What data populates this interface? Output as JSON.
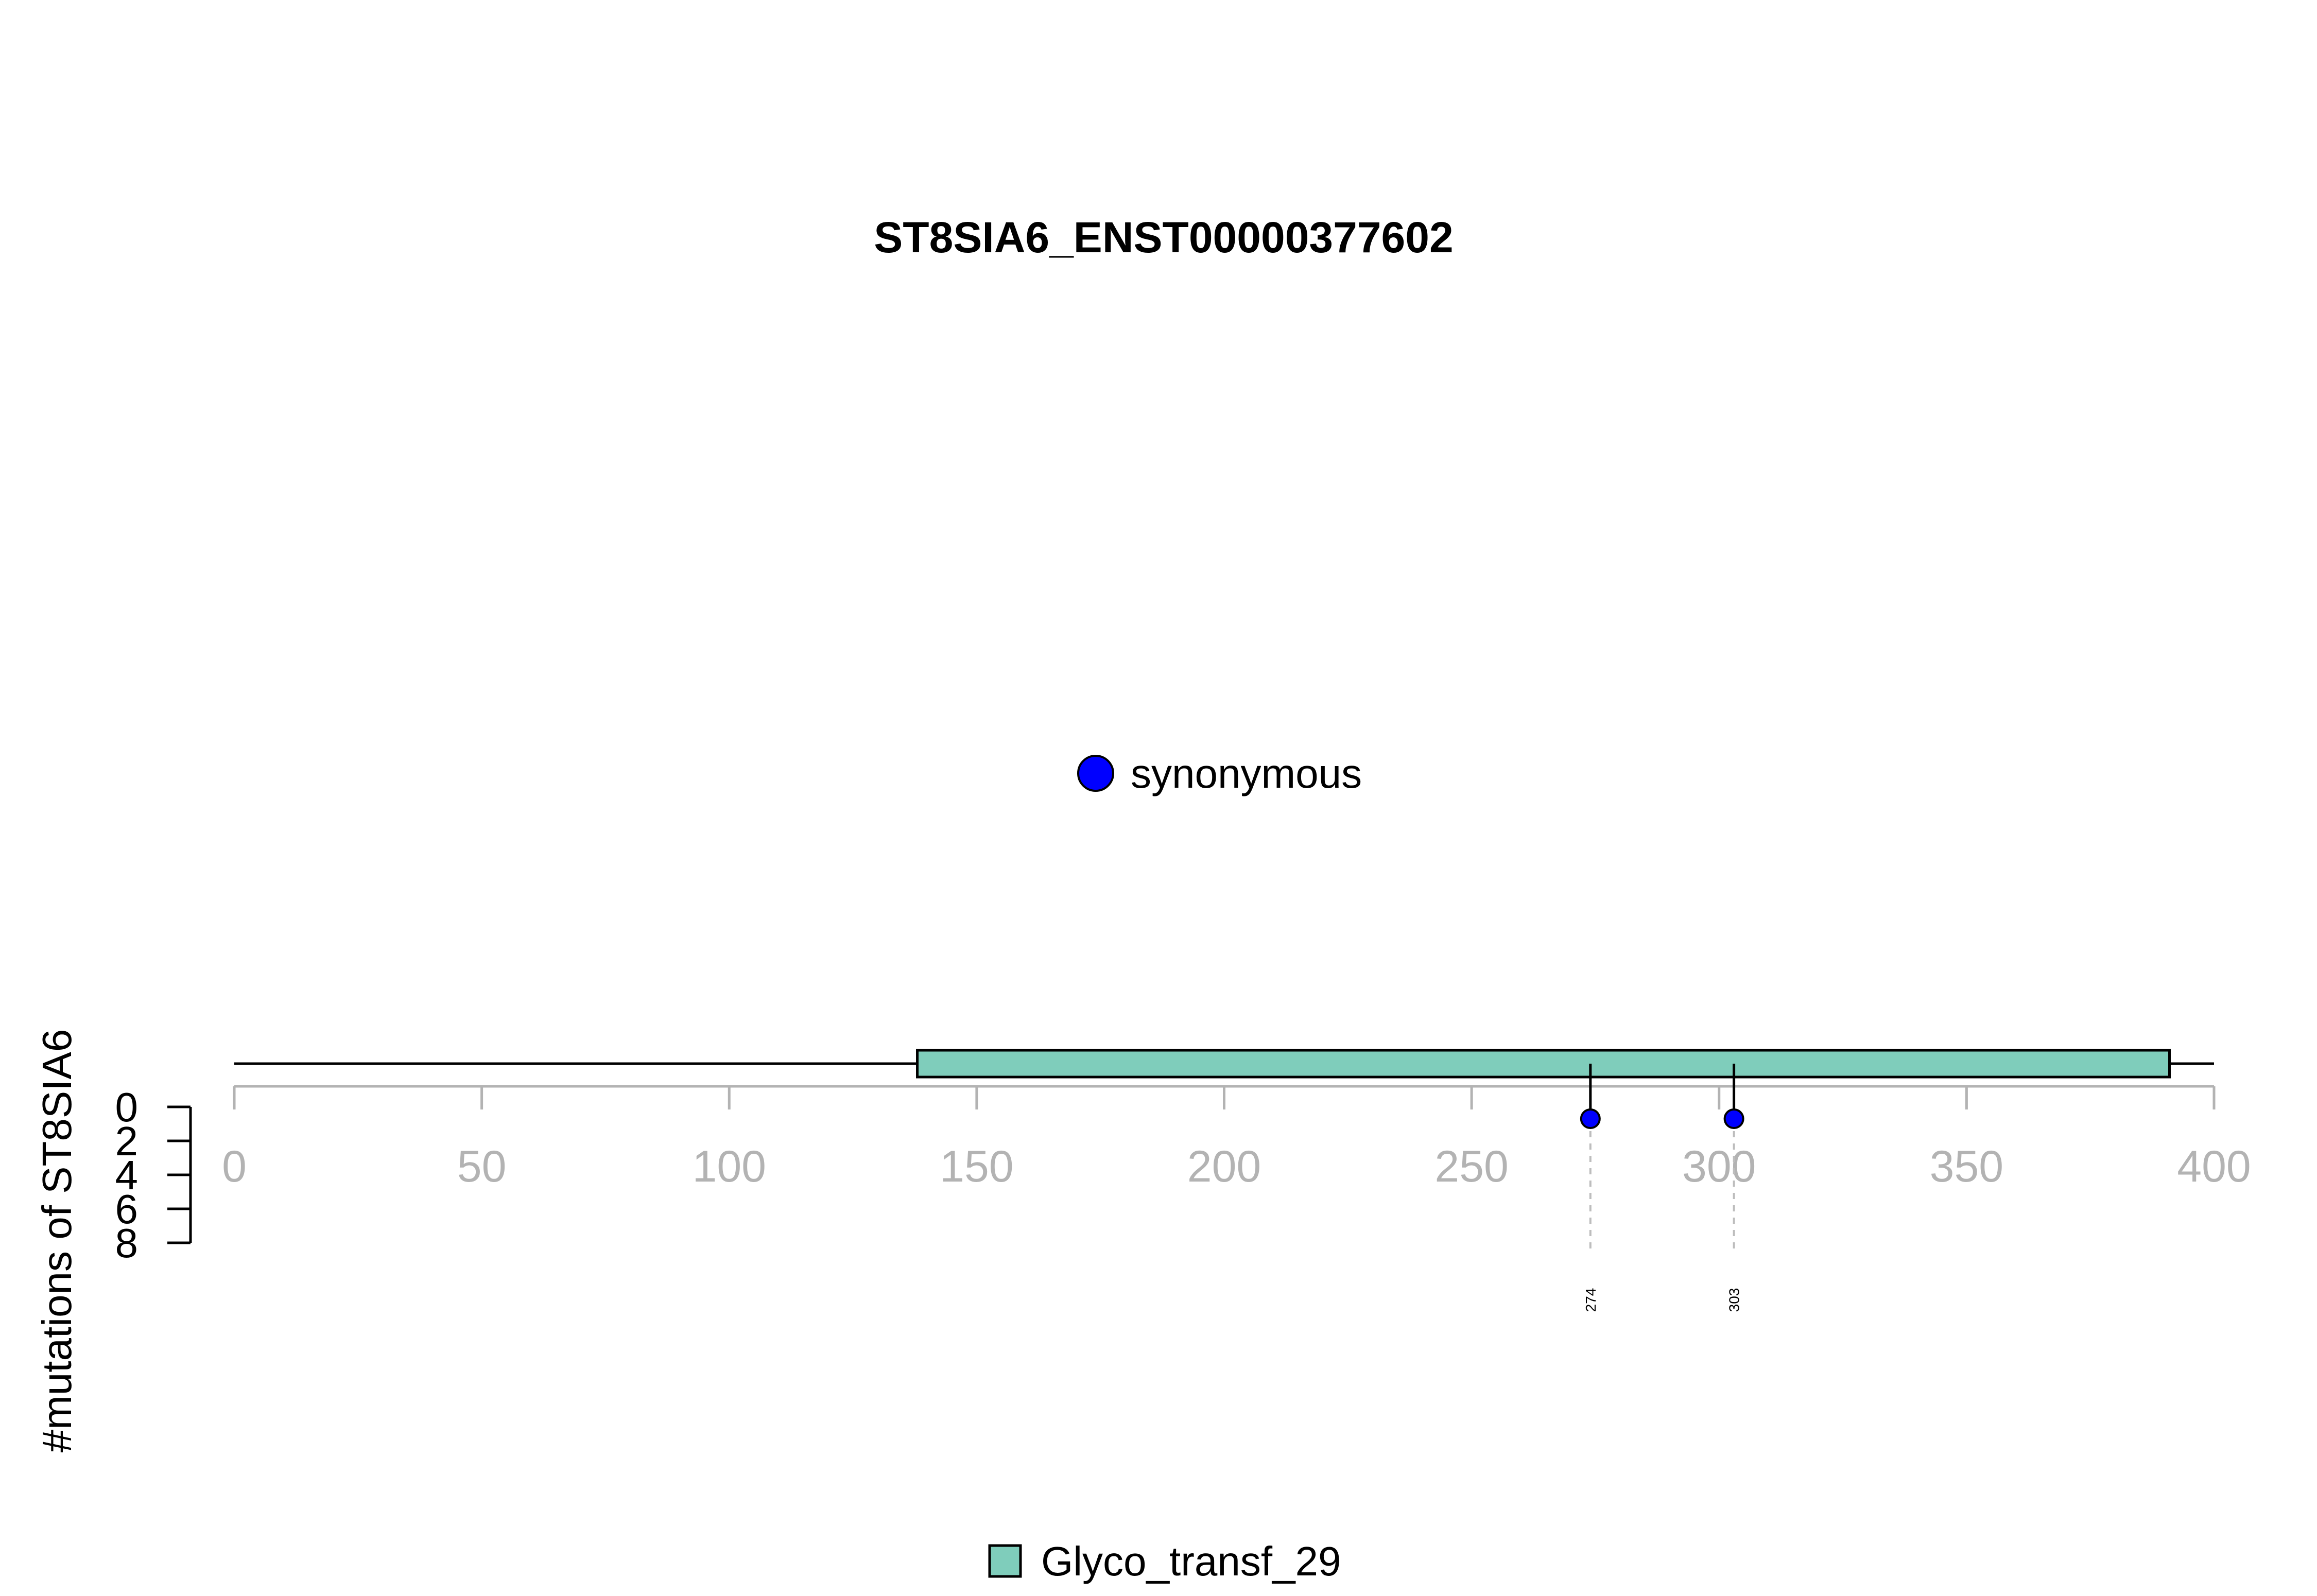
{
  "chart_data": {
    "type": "lollipop",
    "title": "ST8SIA6_ENST00000377602",
    "ylabel": "#mutations of ST8SIA6",
    "xlim": [
      0,
      400
    ],
    "x_ticks": [
      0,
      50,
      100,
      150,
      200,
      250,
      300,
      350,
      400
    ],
    "y_ticks": [
      0,
      2,
      4,
      6,
      8
    ],
    "protein_length": 400,
    "domains": [
      {
        "name": "Glyco_transf_29",
        "start": 138,
        "end": 391,
        "color": "#7fcdbb"
      }
    ],
    "mutations": [
      {
        "position": 274,
        "count": 1,
        "type": "synonymous",
        "label": "274"
      },
      {
        "position": 303,
        "count": 1,
        "type": "synonymous",
        "label": "303"
      }
    ],
    "mutation_legend": [
      {
        "name": "synonymous",
        "color": "#0000ff"
      }
    ],
    "domain_legend": [
      {
        "name": "Glyco_transf_29",
        "color": "#7fcdbb"
      }
    ]
  }
}
